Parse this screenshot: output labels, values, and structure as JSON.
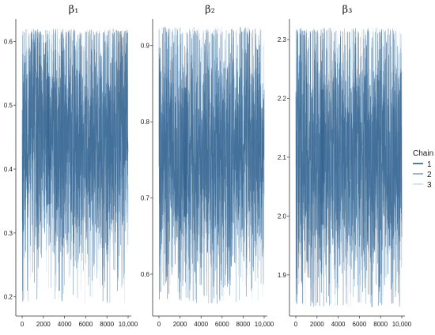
{
  "chart_data": [
    {
      "type": "line",
      "title": "β₁",
      "xlabel": "",
      "ylabel": "",
      "xlim": [
        -600,
        10300
      ],
      "ylim": [
        0.17,
        0.635
      ],
      "xticks": [
        0,
        2000,
        4000,
        6000,
        8000,
        10000
      ],
      "xtick_labels": [
        "0",
        "2000",
        "4000",
        "6000",
        "8000",
        "10,000"
      ],
      "yticks": [
        0.2,
        0.3,
        0.4,
        0.5,
        0.6
      ],
      "ytick_labels": [
        "0.2",
        "0.3",
        "0.4",
        "0.5",
        "0.6"
      ],
      "trace": {
        "center": 0.445,
        "band_low": 0.345,
        "band_high": 0.545,
        "min": 0.19,
        "max": 0.62,
        "burst_x": 2500
      },
      "series": [
        {
          "name": "1",
          "color": "#2b5b8a"
        },
        {
          "name": "2",
          "color": "#7ea6c4"
        },
        {
          "name": "3",
          "color": "#cfdfec"
        }
      ]
    },
    {
      "type": "line",
      "title": "β₂",
      "xlabel": "",
      "ylabel": "",
      "xlim": [
        -600,
        10300
      ],
      "ylim": [
        0.545,
        0.935
      ],
      "xticks": [
        0,
        2000,
        4000,
        6000,
        8000,
        10000
      ],
      "xtick_labels": [
        "0",
        "2000",
        "4000",
        "6000",
        "8000",
        "10,000"
      ],
      "yticks": [
        0.6,
        0.7,
        0.8,
        0.9
      ],
      "ytick_labels": [
        "0.6",
        "0.7",
        "0.8",
        "0.9"
      ],
      "trace": {
        "center": 0.76,
        "band_low": 0.675,
        "band_high": 0.845,
        "min": 0.56,
        "max": 0.925,
        "burst_x": 2500
      },
      "series": [
        {
          "name": "1",
          "color": "#2b5b8a"
        },
        {
          "name": "2",
          "color": "#7ea6c4"
        },
        {
          "name": "3",
          "color": "#cfdfec"
        }
      ]
    },
    {
      "type": "line",
      "title": "β₃",
      "xlabel": "",
      "ylabel": "",
      "xlim": [
        -600,
        10300
      ],
      "ylim": [
        1.83,
        2.335
      ],
      "xticks": [
        0,
        2000,
        4000,
        6000,
        8000,
        10000
      ],
      "xtick_labels": [
        "0",
        "2000",
        "4000",
        "6000",
        "8000",
        "10,000"
      ],
      "yticks": [
        1.9,
        2.0,
        2.1,
        2.2,
        2.3
      ],
      "ytick_labels": [
        "1.9",
        "2.0",
        "2.1",
        "2.2",
        "2.3"
      ],
      "trace": {
        "center": 2.1,
        "band_low": 1.985,
        "band_high": 2.215,
        "min": 1.845,
        "max": 2.32,
        "burst_x": 2500
      },
      "series": [
        {
          "name": "1",
          "color": "#2b5b8a"
        },
        {
          "name": "2",
          "color": "#7ea6c4"
        },
        {
          "name": "3",
          "color": "#cfdfec"
        }
      ]
    }
  ],
  "legend": {
    "title": "Chain",
    "placement": "right",
    "entries": [
      {
        "label": "1",
        "color": "#2b5b8a"
      },
      {
        "label": "2",
        "color": "#7ea6c4"
      },
      {
        "label": "3",
        "color": "#cfdfec"
      }
    ]
  }
}
